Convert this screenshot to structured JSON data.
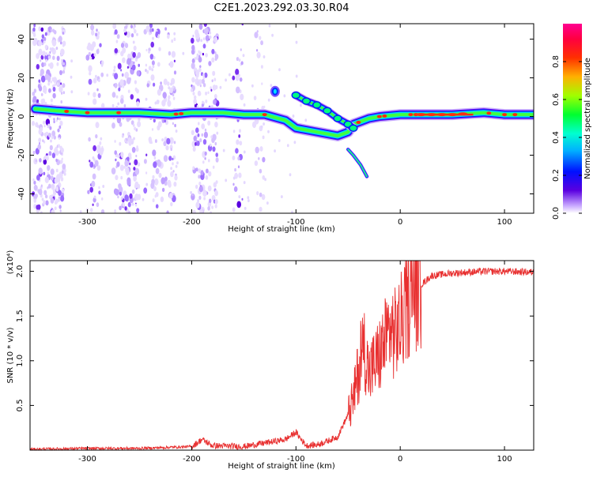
{
  "title": "C2E1.2023.292.03.30.R04",
  "chart_data": [
    {
      "type": "heatmap",
      "xlabel": "Height of straight line (km)",
      "ylabel": "Frequency (Hz)",
      "xlim": [
        -355,
        128
      ],
      "ylim": [
        -50,
        48
      ],
      "xticks": [
        -300,
        -200,
        -100,
        0,
        100
      ],
      "yticks": [
        -40,
        -20,
        0,
        20,
        40
      ],
      "colorbar": {
        "label": "Normalized spectral amplitude",
        "range": [
          0,
          1
        ],
        "ticks": [
          "0.0",
          "0.2",
          "0.4",
          "0.6",
          "0.8"
        ],
        "colors": [
          "#ffffff",
          "#5a00e0",
          "#0010ff",
          "#00d0ff",
          "#00ff60",
          "#c0ff00",
          "#ff8000",
          "#ff0000",
          "#ff0090"
        ]
      },
      "ridge": [
        [
          -350,
          4
        ],
        [
          -330,
          3
        ],
        [
          -300,
          2
        ],
        [
          -250,
          2
        ],
        [
          -220,
          1
        ],
        [
          -200,
          2
        ],
        [
          -170,
          2
        ],
        [
          -150,
          1
        ],
        [
          -130,
          1
        ],
        [
          -110,
          -2
        ],
        [
          -100,
          -6
        ],
        [
          -80,
          -8
        ],
        [
          -60,
          -10
        ],
        [
          -50,
          -8
        ],
        [
          -45,
          -4
        ],
        [
          -40,
          -3
        ],
        [
          -30,
          -1
        ],
        [
          -20,
          0
        ],
        [
          0,
          1
        ],
        [
          50,
          1
        ],
        [
          80,
          2
        ],
        [
          100,
          1
        ],
        [
          128,
          1
        ]
      ],
      "branch": [
        [
          -100,
          11
        ],
        [
          -90,
          8
        ],
        [
          -80,
          6
        ],
        [
          -70,
          3
        ],
        [
          -60,
          -1
        ],
        [
          -50,
          -4
        ],
        [
          -45,
          -6
        ]
      ],
      "tail": [
        [
          -50,
          -17
        ],
        [
          -45,
          -20
        ],
        [
          -38,
          -25
        ],
        [
          -32,
          -31
        ]
      ],
      "isolated_peak": [
        -120,
        13
      ]
    },
    {
      "type": "line",
      "xlabel": "Height of straight line (km)",
      "ylabel": "SNR (10 * v/v)",
      "scale_label": "(x10⁴)",
      "xlim": [
        -355,
        128
      ],
      "ylim": [
        0,
        2.12
      ],
      "xticks": [
        -300,
        -200,
        -100,
        0,
        100
      ],
      "yticks": [
        "0.5",
        "1.0",
        "1.5",
        "2.0"
      ],
      "color": "#e83030",
      "series_points": [
        [
          -355,
          0.01
        ],
        [
          -300,
          0.02
        ],
        [
          -250,
          0.02
        ],
        [
          -200,
          0.04
        ],
        [
          -190,
          0.12
        ],
        [
          -180,
          0.05
        ],
        [
          -150,
          0.04
        ],
        [
          -130,
          0.08
        ],
        [
          -110,
          0.12
        ],
        [
          -100,
          0.2
        ],
        [
          -95,
          0.12
        ],
        [
          -90,
          0.05
        ],
        [
          -80,
          0.06
        ],
        [
          -70,
          0.1
        ],
        [
          -60,
          0.15
        ],
        [
          -50,
          0.4
        ],
        [
          -45,
          0.55
        ],
        [
          -40,
          0.9
        ],
        [
          -35,
          1.2
        ],
        [
          -30,
          0.85
        ],
        [
          -25,
          0.95
        ],
        [
          -20,
          1.05
        ],
        [
          -15,
          1.2
        ],
        [
          -10,
          1.35
        ],
        [
          -5,
          1.3
        ],
        [
          0,
          1.4
        ],
        [
          5,
          1.55
        ],
        [
          10,
          1.75
        ],
        [
          20,
          1.85
        ],
        [
          30,
          1.95
        ],
        [
          50,
          1.98
        ],
        [
          80,
          2.0
        ],
        [
          100,
          2.0
        ],
        [
          128,
          1.99
        ]
      ]
    }
  ]
}
